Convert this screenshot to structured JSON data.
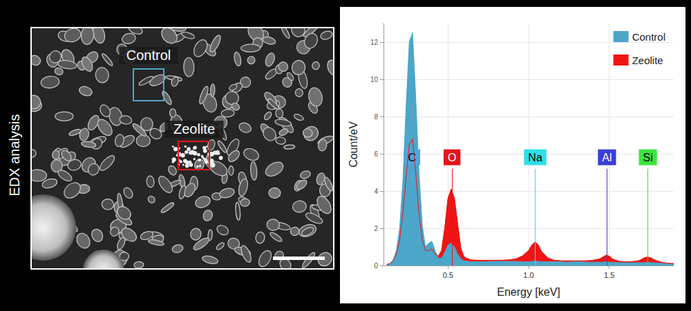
{
  "image_panel": {
    "side_label": "EDX analysis",
    "regions": [
      {
        "label": "Control",
        "color": "#4ba6c9"
      },
      {
        "label": "Zeolite",
        "color": "#e8141b"
      }
    ]
  },
  "chart_data": {
    "type": "area",
    "x_label": "Energy [keV]",
    "y_label": "Count/eV",
    "xlim": [
      0.1,
      1.9
    ],
    "xticks": [
      0.5,
      {
        "value": 1,
        "label": "1.0"
      },
      1.5
    ],
    "ylim": [
      0,
      13
    ],
    "yticks": [
      0,
      2,
      4,
      6,
      8,
      10,
      12
    ],
    "grid": true,
    "legend": "upper right",
    "x": [
      0.12,
      0.14,
      0.16,
      0.18,
      0.2,
      0.22,
      0.24,
      0.26,
      0.28,
      0.3,
      0.32,
      0.34,
      0.36,
      0.38,
      0.4,
      0.42,
      0.44,
      0.46,
      0.48,
      0.5,
      0.52,
      0.54,
      0.56,
      0.58,
      0.6,
      0.64,
      0.68,
      0.72,
      0.76,
      0.8,
      0.84,
      0.88,
      0.92,
      0.96,
      1.0,
      1.02,
      1.04,
      1.06,
      1.08,
      1.12,
      1.16,
      1.2,
      1.24,
      1.28,
      1.32,
      1.36,
      1.4,
      1.44,
      1.46,
      1.48,
      1.5,
      1.52,
      1.56,
      1.6,
      1.64,
      1.68,
      1.7,
      1.72,
      1.74,
      1.76,
      1.78,
      1.82,
      1.86,
      1.9
    ],
    "series": [
      {
        "name": "Control",
        "color": "#4ba6c9",
        "values": [
          0.05,
          0.1,
          0.3,
          0.8,
          2.0,
          4.5,
          8.5,
          12.0,
          12.5,
          9.0,
          5.0,
          2.2,
          1.0,
          1.2,
          1.3,
          0.8,
          0.4,
          0.4,
          0.7,
          1.1,
          1.2,
          1.0,
          0.6,
          0.35,
          0.25,
          0.2,
          0.2,
          0.2,
          0.22,
          0.22,
          0.22,
          0.22,
          0.22,
          0.2,
          0.2,
          0.22,
          0.25,
          0.22,
          0.2,
          0.2,
          0.2,
          0.2,
          0.18,
          0.2,
          0.2,
          0.18,
          0.18,
          0.18,
          0.18,
          0.2,
          0.18,
          0.18,
          0.15,
          0.15,
          0.15,
          0.15,
          0.15,
          0.15,
          0.18,
          0.15,
          0.15,
          0.12,
          0.1,
          0.1
        ]
      },
      {
        "name": "Zeolite",
        "color": "#f01414",
        "values": [
          0.05,
          0.1,
          0.25,
          0.6,
          1.4,
          2.8,
          4.8,
          6.5,
          6.8,
          5.0,
          2.8,
          1.4,
          0.8,
          0.8,
          0.9,
          0.6,
          0.5,
          0.8,
          2.0,
          3.6,
          4.1,
          3.6,
          2.2,
          0.9,
          0.45,
          0.3,
          0.28,
          0.28,
          0.28,
          0.28,
          0.28,
          0.3,
          0.35,
          0.5,
          0.8,
          1.1,
          1.25,
          1.1,
          0.75,
          0.4,
          0.28,
          0.25,
          0.25,
          0.25,
          0.25,
          0.25,
          0.28,
          0.35,
          0.45,
          0.55,
          0.5,
          0.35,
          0.22,
          0.2,
          0.2,
          0.25,
          0.32,
          0.42,
          0.45,
          0.4,
          0.3,
          0.18,
          0.12,
          0.1
        ]
      }
    ],
    "annotations": [
      {
        "label": "C",
        "x": 0.277,
        "color": "#4fa6dc"
      },
      {
        "label": "O",
        "x": 0.525,
        "color": "#e3141b"
      },
      {
        "label": "Na",
        "x": 1.041,
        "color": "#2ee0e8"
      },
      {
        "label": "Al",
        "x": 1.486,
        "color": "#3a3ed8"
      },
      {
        "label": "Si",
        "x": 1.74,
        "color": "#3ee43e"
      }
    ]
  }
}
